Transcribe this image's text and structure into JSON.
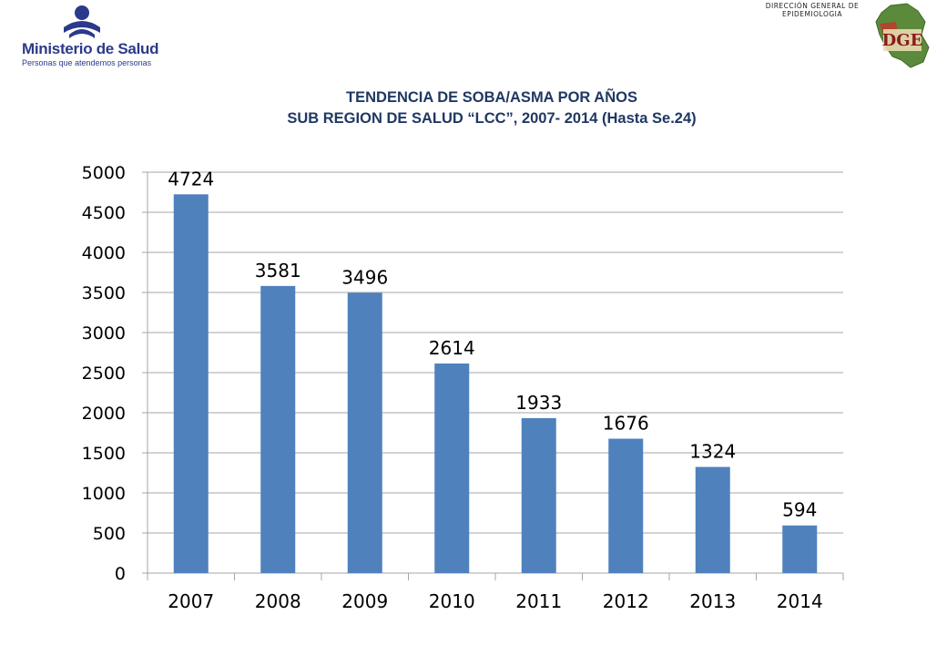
{
  "header": {
    "ministry_name": "Ministerio de Salud",
    "ministry_motto": "Personas que atendemos personas",
    "dge_caption_line1": "DIRECCIÓN GENERAL DE",
    "dge_caption_line2": "EPIDEMIOLOGIA",
    "dge_logo_text": "DGE"
  },
  "title": {
    "line1": "TENDENCIA DE SOBA/ASMA POR AÑOS",
    "line2": "SUB REGION DE SALUD “LCC”, 2007- 2014 (Hasta Se.24)"
  },
  "colors": {
    "bar": "#4f81bd",
    "grid": "#a6a6a6",
    "title": "#1f3864",
    "ministry": "#2b3a8a"
  },
  "chart_data": {
    "type": "bar",
    "categories": [
      "2007",
      "2008",
      "2009",
      "2010",
      "2011",
      "2012",
      "2013",
      "2014"
    ],
    "values": [
      4724,
      3581,
      3496,
      2614,
      1933,
      1676,
      1324,
      594
    ],
    "ylim": [
      0,
      5000
    ],
    "yticks": [
      "0",
      "500",
      "1000",
      "1500",
      "2000",
      "2500",
      "3000",
      "3500",
      "4000",
      "4500",
      "5000"
    ],
    "grid": true,
    "legend": "none",
    "data_labels": true
  }
}
